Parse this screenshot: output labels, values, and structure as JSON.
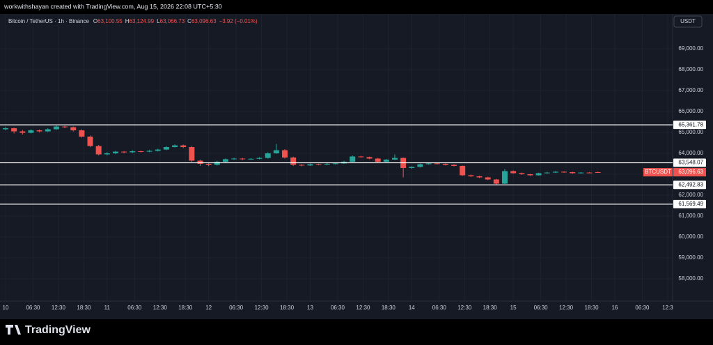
{
  "chart_data": {
    "type": "candlestick",
    "watermark": "workwithshayan created with TradingView.com, Aug 15, 2026 22:08 UTC+5:30",
    "symbol": "Bitcoin / TetherUS · 1h · Binance",
    "legend": {
      "open_label": "O",
      "open": "63,100.55",
      "high_label": "H",
      "high": "63,124.99",
      "low_label": "L",
      "low": "63,066.73",
      "close_label": "C",
      "close": "63,096.63",
      "change": "−3.92 (−0.01%)"
    },
    "currency": "USDT",
    "brand": "TradingView",
    "up_color": "#26a69a",
    "down_color": "#ef5350",
    "grid": true,
    "xlim": [
      0,
      158
    ],
    "xticks": [
      {
        "value": 0,
        "label": "10"
      },
      {
        "value": 6.5,
        "label": "06:30"
      },
      {
        "value": 12.5,
        "label": "12:30"
      },
      {
        "value": 18.5,
        "label": "18:30"
      },
      {
        "value": 24,
        "label": "11"
      },
      {
        "value": 30.5,
        "label": "06:30"
      },
      {
        "value": 36.5,
        "label": "12:30"
      },
      {
        "value": 42.5,
        "label": "18:30"
      },
      {
        "value": 48,
        "label": "12"
      },
      {
        "value": 54.5,
        "label": "06:30"
      },
      {
        "value": 60.5,
        "label": "12:30"
      },
      {
        "value": 66.5,
        "label": "18:30"
      },
      {
        "value": 72,
        "label": "13"
      },
      {
        "value": 78.5,
        "label": "06:30"
      },
      {
        "value": 84.5,
        "label": "12:30"
      },
      {
        "value": 90.5,
        "label": "18:30"
      },
      {
        "value": 96,
        "label": "14"
      },
      {
        "value": 102.5,
        "label": "06:30"
      },
      {
        "value": 108.5,
        "label": "12:30"
      },
      {
        "value": 114.5,
        "label": "18:30"
      },
      {
        "value": 120,
        "label": "15"
      },
      {
        "value": 126.5,
        "label": "06:30"
      },
      {
        "value": 132.5,
        "label": "12:30"
      },
      {
        "value": 138.5,
        "label": "18:30"
      },
      {
        "value": 144,
        "label": "16"
      },
      {
        "value": 150.5,
        "label": "06:30"
      },
      {
        "value": 156.5,
        "label": "12:3"
      }
    ],
    "ylim": [
      57000,
      70000
    ],
    "yticks": [
      {
        "value": 58000,
        "label": "58,000.00"
      },
      {
        "value": 59000,
        "label": "59,000.00"
      },
      {
        "value": 60000,
        "label": "60,000.00"
      },
      {
        "value": 61000,
        "label": "61,000.00"
      },
      {
        "value": 62000,
        "label": "62,000.00"
      },
      {
        "value": 63000,
        "label": "63,000.00"
      },
      {
        "value": 64000,
        "label": "64,000.00"
      },
      {
        "value": 65000,
        "label": "65,000.00"
      },
      {
        "value": 66000,
        "label": "66,000.00"
      },
      {
        "value": 67000,
        "label": "67,000.00"
      },
      {
        "value": 68000,
        "label": "68,000.00"
      },
      {
        "value": 69000,
        "label": "69,000.00"
      }
    ],
    "levels": [
      {
        "value": 65361.78,
        "label": "65,361.78"
      },
      {
        "value": 63548.07,
        "label": "63,548.07"
      },
      {
        "value": 62492.83,
        "label": "62,492.83"
      },
      {
        "value": 61569.49,
        "label": "61,569.49"
      }
    ],
    "last_price": {
      "name": "BTCUSDT",
      "value": 63096.63,
      "value_label": "63,096.63"
    },
    "x": [
      0,
      2,
      4,
      6,
      8,
      10,
      12,
      14,
      16,
      18,
      20,
      22,
      24,
      26,
      28,
      30,
      32,
      34,
      36,
      38,
      40,
      42,
      44,
      46,
      48,
      50,
      52,
      54,
      56,
      58,
      60,
      62,
      64,
      66,
      68,
      70,
      72,
      74,
      76,
      78,
      80,
      82,
      84,
      86,
      88,
      90,
      92,
      94,
      96,
      98,
      100,
      102,
      104,
      106,
      108,
      110,
      112,
      114,
      116,
      118,
      120,
      122,
      124,
      126,
      128,
      130,
      132,
      134,
      136,
      138,
      140
    ],
    "candles": [
      [
        65150,
        65260,
        65100,
        65200
      ],
      [
        65200,
        65230,
        64950,
        65050
      ],
      [
        65050,
        65120,
        64900,
        64980
      ],
      [
        64980,
        65150,
        64950,
        65100
      ],
      [
        65100,
        65140,
        65000,
        65050
      ],
      [
        65050,
        65200,
        65020,
        65150
      ],
      [
        65150,
        65330,
        65120,
        65280
      ],
      [
        65280,
        65320,
        65200,
        65250
      ],
      [
        65250,
        65280,
        65050,
        65100
      ],
      [
        65100,
        65150,
        64750,
        64800
      ],
      [
        64800,
        64850,
        64300,
        64350
      ],
      [
        64350,
        64400,
        63900,
        63950
      ],
      [
        63950,
        64060,
        63900,
        64000
      ],
      [
        64000,
        64120,
        63960,
        64080
      ],
      [
        64080,
        64110,
        64000,
        64050
      ],
      [
        64050,
        64150,
        64020,
        64100
      ],
      [
        64100,
        64130,
        64040,
        64080
      ],
      [
        64080,
        64160,
        64050,
        64120
      ],
      [
        64120,
        64220,
        64090,
        64180
      ],
      [
        64180,
        64340,
        64150,
        64300
      ],
      [
        64300,
        64430,
        64280,
        64380
      ],
      [
        64380,
        64420,
        64250,
        64300
      ],
      [
        64300,
        64350,
        63600,
        63650
      ],
      [
        63650,
        63700,
        63400,
        63500
      ],
      [
        63500,
        63540,
        63380,
        63450
      ],
      [
        63450,
        63640,
        63420,
        63600
      ],
      [
        63600,
        63760,
        63570,
        63720
      ],
      [
        63720,
        63790,
        63690,
        63750
      ],
      [
        63750,
        63780,
        63680,
        63720
      ],
      [
        63720,
        63770,
        63690,
        63740
      ],
      [
        63740,
        63820,
        63710,
        63780
      ],
      [
        63780,
        64050,
        63750,
        64000
      ],
      [
        64000,
        64450,
        63980,
        64150
      ],
      [
        64150,
        64200,
        63750,
        63800
      ],
      [
        63800,
        63840,
        63400,
        63450
      ],
      [
        63450,
        63480,
        63380,
        63420
      ],
      [
        63420,
        63520,
        63400,
        63480
      ],
      [
        63480,
        63510,
        63430,
        63460
      ],
      [
        63460,
        63540,
        63440,
        63500
      ],
      [
        63500,
        63560,
        63470,
        63520
      ],
      [
        63520,
        63640,
        63500,
        63600
      ],
      [
        63600,
        63900,
        63580,
        63850
      ],
      [
        63850,
        63880,
        63790,
        63820
      ],
      [
        63820,
        63840,
        63720,
        63750
      ],
      [
        63750,
        63780,
        63560,
        63600
      ],
      [
        63600,
        63730,
        63580,
        63700
      ],
      [
        63700,
        63950,
        63680,
        63780
      ],
      [
        63780,
        63800,
        62850,
        63300
      ],
      [
        63300,
        63380,
        63250,
        63350
      ],
      [
        63350,
        63510,
        63320,
        63480
      ],
      [
        63480,
        63560,
        63460,
        63520
      ],
      [
        63520,
        63540,
        63470,
        63500
      ],
      [
        63500,
        63520,
        63420,
        63450
      ],
      [
        63450,
        63480,
        63370,
        63400
      ],
      [
        63400,
        63420,
        62920,
        62950
      ],
      [
        62950,
        62980,
        62870,
        62900
      ],
      [
        62900,
        62930,
        62820,
        62850
      ],
      [
        62850,
        62880,
        62720,
        62750
      ],
      [
        62750,
        62780,
        62500,
        62550
      ],
      [
        62550,
        63250,
        62530,
        63150
      ],
      [
        63150,
        63180,
        63020,
        63050
      ],
      [
        63050,
        63080,
        62970,
        63000
      ],
      [
        63000,
        63020,
        62920,
        62950
      ],
      [
        62950,
        63080,
        62930,
        63050
      ],
      [
        63050,
        63110,
        63030,
        63080
      ],
      [
        63080,
        63150,
        63060,
        63120
      ],
      [
        63120,
        63140,
        63070,
        63100
      ],
      [
        63100,
        63120,
        63020,
        63050
      ],
      [
        63050,
        63100,
        63030,
        63080
      ],
      [
        63080,
        63100,
        63050,
        63070
      ],
      [
        63100.55,
        63124.99,
        63066.73,
        63096.63
      ]
    ]
  }
}
